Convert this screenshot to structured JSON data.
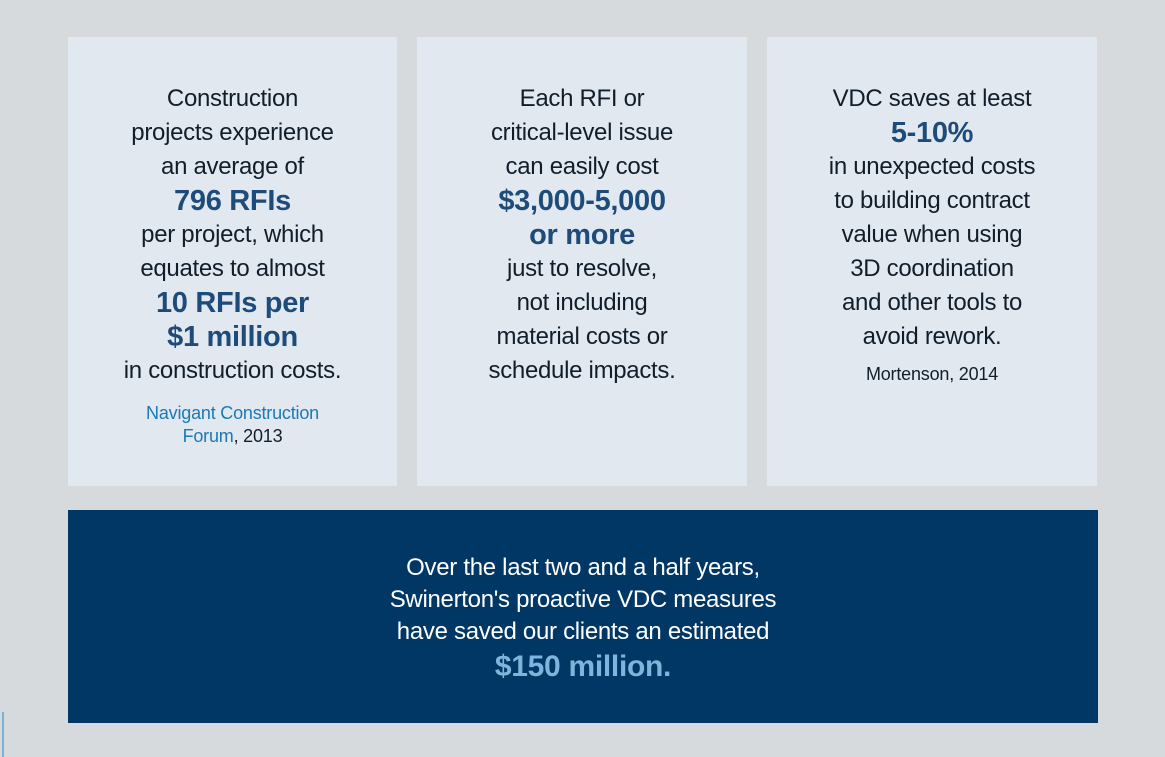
{
  "colors": {
    "page_background": "#d7dadd",
    "card_background": "#e2e8f0",
    "banner_background": "#003764",
    "body_text": "#111e2a",
    "stat_accent": "#1d4b7a",
    "source_link_blue": "#1a79b7",
    "banner_text": "#ffffff",
    "banner_highlight": "#7fb4dd"
  },
  "cards": [
    {
      "topic": "RFI average per project",
      "lines": [
        "Construction",
        "projects experience",
        "an average of",
        "796 RFIs",
        "per project, which",
        "equates to almost",
        "10 RFIs per",
        "$1 million",
        "in construction costs."
      ],
      "source_line1": "Navigant Construction",
      "source_line2_link": "Forum",
      "source_line2_rest": ", 2013"
    },
    {
      "topic": "Cost per RFI",
      "lines": [
        "Each RFI or",
        "critical-level issue",
        "can easily cost",
        "$3,000-5,000",
        "or more",
        "just to resolve,",
        "not including",
        "material costs or",
        "schedule impacts."
      ]
    },
    {
      "topic": "VDC savings",
      "lines": [
        "VDC saves at least",
        "5-10%",
        "in unexpected costs",
        "to building contract",
        "value when using",
        "3D coordination",
        "and other tools to",
        "avoid rework."
      ],
      "source": "Mortenson, 2014"
    }
  ],
  "banner": {
    "lines": [
      "Over the last two and a half years,",
      "Swinerton's proactive VDC measures",
      "have saved our clients an estimated"
    ],
    "highlight": "$150 million."
  }
}
